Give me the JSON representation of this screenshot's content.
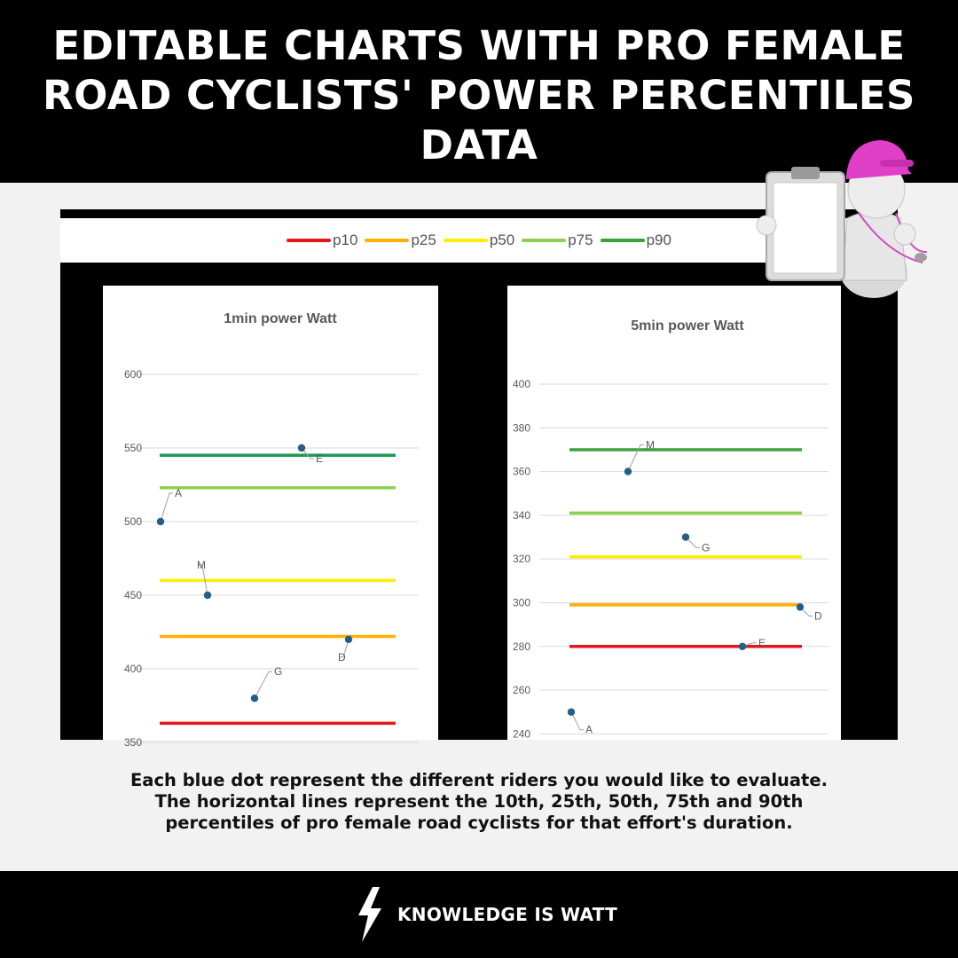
{
  "header": {
    "title": "EDITABLE CHARTS WITH PRO FEMALE ROAD CYCLISTS' POWER PERCENTILES DATA"
  },
  "legend": [
    {
      "label": "p10",
      "color": "#e8161b"
    },
    {
      "label": "p25",
      "color": "#ffb000"
    },
    {
      "label": "p50",
      "color": "#ffee00"
    },
    {
      "label": "p75",
      "color": "#8fcf4f"
    },
    {
      "label": "p90",
      "color": "#3aa23a"
    }
  ],
  "chart_data": [
    {
      "type": "scatter",
      "title": "1min power Watt",
      "ylim": [
        350,
        600
      ],
      "yticks": [
        350,
        400,
        450,
        500,
        550,
        600
      ],
      "grid": true,
      "percentile_lines": [
        {
          "name": "p10",
          "value": 363,
          "color": "#e8161b"
        },
        {
          "name": "p25",
          "value": 422,
          "color": "#ffb000"
        },
        {
          "name": "p50",
          "value": 460,
          "color": "#ffee00"
        },
        {
          "name": "p75",
          "value": 523,
          "color": "#8fcf4f"
        },
        {
          "name": "p90",
          "value": 545,
          "color": "#1f9a55"
        }
      ],
      "riders": [
        {
          "label": "A",
          "value": 500
        },
        {
          "label": "M",
          "value": 450
        },
        {
          "label": "G",
          "value": 380
        },
        {
          "label": "E",
          "value": 550
        },
        {
          "label": "D",
          "value": 420
        }
      ],
      "point_color": "#1f5f8a"
    },
    {
      "type": "scatter",
      "title": "5min power Watt",
      "ylim": [
        230,
        400
      ],
      "yticks": [
        240,
        260,
        280,
        300,
        320,
        340,
        360,
        380,
        400
      ],
      "grid": true,
      "percentile_lines": [
        {
          "name": "p10",
          "value": 280,
          "color": "#e8161b"
        },
        {
          "name": "p25",
          "value": 299,
          "color": "#ffb000"
        },
        {
          "name": "p50",
          "value": 321,
          "color": "#ffee00"
        },
        {
          "name": "p75",
          "value": 341,
          "color": "#8fcf4f"
        },
        {
          "name": "p90",
          "value": 370,
          "color": "#3aa23a"
        }
      ],
      "riders": [
        {
          "label": "A",
          "value": 250
        },
        {
          "label": "M",
          "value": 360
        },
        {
          "label": "G",
          "value": 330
        },
        {
          "label": "E",
          "value": 280
        },
        {
          "label": "D",
          "value": 298
        }
      ],
      "point_color": "#1f5f8a"
    }
  ],
  "caption": {
    "line1": "Each blue dot represent the different riders you would like to evaluate.",
    "line2": "The horizontal lines represent the 10th, 25th, 50th, 75th and 90th",
    "line3": "percentiles of pro female road cyclists for that effort's duration."
  },
  "footer": {
    "brand": "KNOWLEDGE IS WATT",
    "icon": "lightning-bolt-icon"
  },
  "illustration": {
    "icon": "coach-figure-icon",
    "cap_color": "#e040c8"
  }
}
